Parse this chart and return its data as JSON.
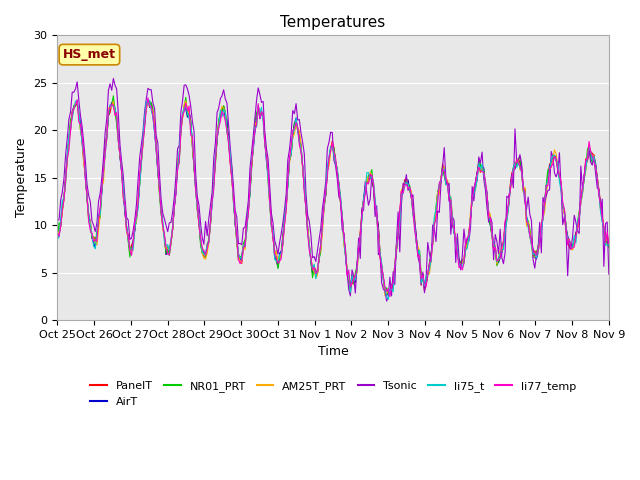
{
  "title": "Temperatures",
  "xlabel": "Time",
  "ylabel": "Temperature",
  "ylim": [
    0,
    30
  ],
  "annotation_text": "HS_met",
  "background_color": "#e8e8e8",
  "figure_color": "#ffffff",
  "legend_entries": [
    "PanelT",
    "AirT",
    "NR01_PRT",
    "AM25T_PRT",
    "Tsonic",
    "li75_t",
    "li77_temp"
  ],
  "line_colors": [
    "#ff0000",
    "#0000cc",
    "#00cc00",
    "#ffaa00",
    "#9900cc",
    "#00cccc",
    "#ff00cc"
  ],
  "xtick_labels": [
    "Oct 25",
    "Oct 26",
    "Oct 27",
    "Oct 28",
    "Oct 29",
    "Oct 30",
    "Oct 31",
    "Nov 1",
    "Nov 2",
    "Nov 3",
    "Nov 4",
    "Nov 5",
    "Nov 6",
    "Nov 7",
    "Nov 8",
    "Nov 9"
  ],
  "n_points": 336,
  "title_fontsize": 11,
  "axis_label_fontsize": 9,
  "tick_fontsize": 8,
  "legend_fontsize": 8,
  "grid_color": "#ffffff",
  "seed": 42
}
